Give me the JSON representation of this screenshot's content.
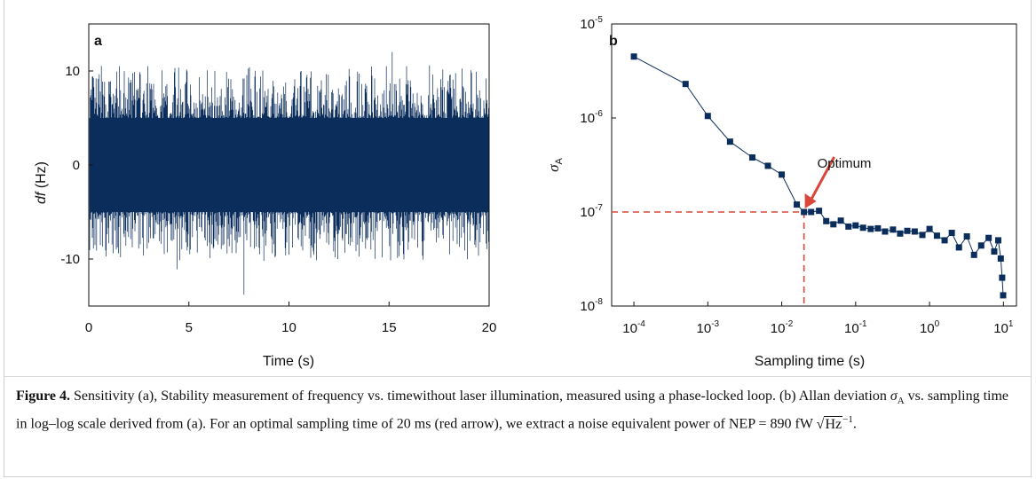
{
  "caption": {
    "label": "Figure 4.",
    "text_1": " Sensitivity (a), Stability measurement of frequency vs. timewithout laser illumination, measured using a phase-locked loop. (b) Allan deviation ",
    "sigma": "σ",
    "sigma_sub": "A",
    "text_2": " vs. sampling time in log–log scale derived from (a). For an optimal sampling time of 20 ms (red arrow), we extract a noise equivalent power of NEP = 890 fW ",
    "sqrt_sym": "√",
    "sqrt_body": "Hz",
    "sqrt_exp": "−1",
    "end": "."
  },
  "chart_data": [
    {
      "type": "line",
      "panel_label": "a",
      "xlabel": "Time (s)",
      "ylabel_italic": "df",
      "ylabel_unit": " (Hz)",
      "xlim": [
        0,
        20
      ],
      "ylim": [
        -15,
        15
      ],
      "x_ticks": [
        0,
        5,
        10,
        15,
        20
      ],
      "x_tick_labels": [
        "0",
        "5",
        "10",
        "15",
        "20"
      ],
      "y_ticks": [
        10,
        0,
        -10
      ],
      "y_tick_labels": [
        "10",
        "0",
        "-10"
      ],
      "noise": {
        "dense_band": [
          -5,
          5
        ],
        "typical_spike_range": [
          -10,
          11
        ],
        "max": 12.2,
        "min": -13.8,
        "min_at": 7.75
      },
      "color": "#0b2d5c"
    },
    {
      "type": "scatter",
      "panel_label": "b",
      "xlabel": "Sampling time (s)",
      "ylabel": "σ",
      "ylabel_sub": "A",
      "xscale": "log",
      "yscale": "log",
      "xlim": [
        5e-05,
        15
      ],
      "ylim": [
        1e-08,
        1e-05
      ],
      "x_ticks": [
        0.0001,
        0.001,
        0.01,
        0.1,
        1,
        10
      ],
      "x_tick_labels": [
        {
          "base": "10",
          "exp": "-4"
        },
        {
          "base": "10",
          "exp": "-3"
        },
        {
          "base": "10",
          "exp": "-2"
        },
        {
          "base": "10",
          "exp": "-1"
        },
        {
          "base": "10",
          "exp": "0"
        },
        {
          "base": "10",
          "exp": "1"
        }
      ],
      "y_ticks": [
        1e-05,
        1e-06,
        1e-07,
        1e-08
      ],
      "y_tick_labels": [
        {
          "base": "10",
          "exp": "-5"
        },
        {
          "base": "10",
          "exp": "-6"
        },
        {
          "base": "10",
          "exp": "-7"
        },
        {
          "base": "10",
          "exp": "-8"
        }
      ],
      "x": [
        0.0001,
        0.0005,
        0.001,
        0.002,
        0.004,
        0.0065,
        0.01,
        0.016,
        0.02,
        0.025,
        0.032,
        0.04,
        0.05,
        0.063,
        0.08,
        0.1,
        0.126,
        0.16,
        0.2,
        0.25,
        0.32,
        0.4,
        0.5,
        0.63,
        0.8,
        1.0,
        1.26,
        1.6,
        2.0,
        2.5,
        3.2,
        4.0,
        5.0,
        6.3,
        7.5,
        8.5,
        9.2,
        9.6,
        9.9
      ],
      "y": [
        4.5e-06,
        2.3e-06,
        1.05e-06,
        5.6e-07,
        3.8e-07,
        3.1e-07,
        2.5e-07,
        1.2e-07,
        1e-07,
        1e-07,
        1.03e-07,
        8e-08,
        7.4e-08,
        8.1e-08,
        7e-08,
        7.2e-08,
        6.8e-08,
        6.6e-08,
        6.7e-08,
        6.2e-08,
        6.5e-08,
        5.9e-08,
        6.3e-08,
        6.2e-08,
        5.7e-08,
        6.6e-08,
        5.6e-08,
        5e-08,
        6e-08,
        4.2e-08,
        5.5e-08,
        3.5e-08,
        4.4e-08,
        5.3e-08,
        3.8e-08,
        5e-08,
        3.2e-08,
        2e-08,
        1.3e-08
      ],
      "color": "#0b2d5c",
      "optimum": {
        "x": 0.02,
        "y": 1e-07,
        "label": "Optimum",
        "line_color": "#d9473a"
      }
    }
  ]
}
